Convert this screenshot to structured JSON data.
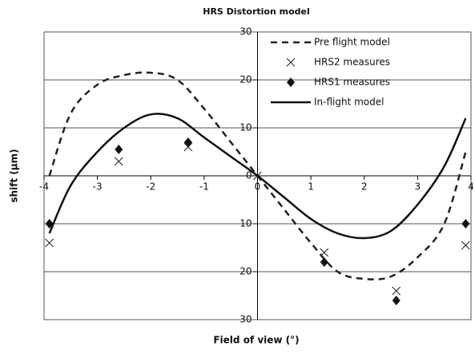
{
  "chart_data": {
    "type": "line",
    "title": "HRS Distortion model",
    "xlabel": "Field of view (°)",
    "ylabel": "shift (µm)",
    "xlim": [
      -4,
      4
    ],
    "ylim": [
      -30,
      30
    ],
    "xticks": [
      -4,
      -3,
      -2,
      -1,
      0,
      1,
      2,
      3,
      4
    ],
    "yticks": [
      {
        "value": -30,
        "label": "30"
      },
      {
        "value": -20,
        "label": "20"
      },
      {
        "value": -10,
        "label": "10"
      },
      0,
      10,
      20,
      30
    ],
    "grid": true,
    "legend": "upper right",
    "series": [
      {
        "name": "Pre flight model",
        "color": "#222222",
        "style": "dashed",
        "x": [
          -3.9,
          -3.5,
          -3,
          -2.5,
          -2,
          -1.5,
          -1,
          -0.5,
          0,
          0.5,
          1,
          1.5,
          2,
          2.5,
          3,
          3.5,
          3.9
        ],
        "values": [
          0,
          13,
          19,
          21,
          21.5,
          20,
          14,
          7,
          0,
          -7,
          -14,
          -20,
          -21.5,
          -21,
          -17,
          -10,
          5
        ]
      },
      {
        "name": "HRS2 measures",
        "color": "#333333",
        "style": "cross",
        "x": [
          -3.9,
          -2.6,
          -1.3,
          0,
          1.25,
          2.6,
          3.9
        ],
        "values": [
          -14,
          3,
          6,
          0,
          -16,
          -24,
          -14.5
        ]
      },
      {
        "name": "HRS1 measures",
        "color": "#111111",
        "style": "diamond",
        "x": [
          -3.9,
          -2.6,
          -1.3,
          1.25,
          2.6,
          3.9
        ],
        "values": [
          -10,
          5.5,
          7,
          -18,
          -26,
          -10
        ]
      },
      {
        "name": "In-flight model",
        "color": "#111111",
        "style": "solid",
        "x": [
          -3.9,
          -3.5,
          -3,
          -2.5,
          -2,
          -1.5,
          -1,
          -0.5,
          0,
          0.5,
          1,
          1.5,
          2,
          2.5,
          3,
          3.5,
          3.9
        ],
        "values": [
          -12,
          -2,
          5,
          10,
          12.8,
          12,
          8,
          4,
          0,
          -4.5,
          -9,
          -12,
          -13,
          -11.5,
          -6,
          2,
          12
        ]
      }
    ]
  }
}
